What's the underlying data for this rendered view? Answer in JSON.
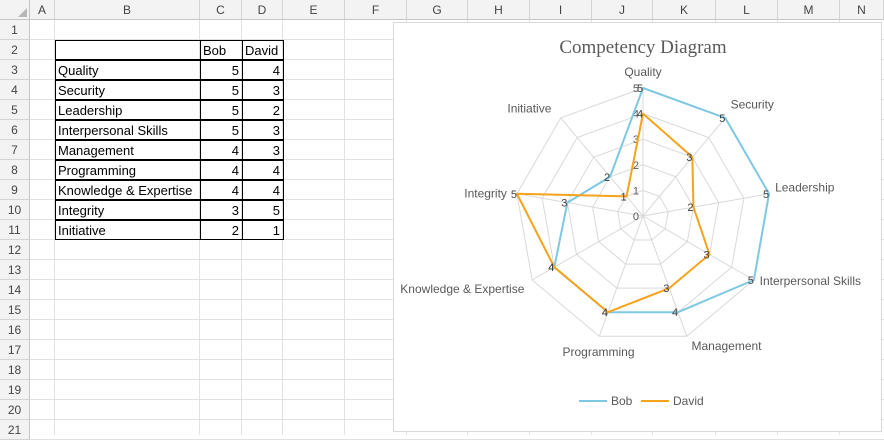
{
  "sheet": {
    "columns": [
      "A",
      "B",
      "C",
      "D",
      "E",
      "F",
      "G",
      "H",
      "I",
      "J",
      "K",
      "L",
      "M",
      "N"
    ],
    "rows": [
      "1",
      "2",
      "3",
      "4",
      "5",
      "6",
      "7",
      "8",
      "9",
      "10",
      "11",
      "12",
      "13",
      "14",
      "15",
      "16",
      "17",
      "18",
      "19",
      "20",
      "21"
    ],
    "table": {
      "headers": [
        "Bob",
        "David"
      ],
      "rows": [
        {
          "label": "Quality",
          "bob": "5",
          "david": "4"
        },
        {
          "label": "Security",
          "bob": "5",
          "david": "3"
        },
        {
          "label": "Leadership",
          "bob": "5",
          "david": "2"
        },
        {
          "label": "Interpersonal Skills",
          "bob": "5",
          "david": "3"
        },
        {
          "label": "Management",
          "bob": "4",
          "david": "3"
        },
        {
          "label": "Programming",
          "bob": "4",
          "david": "4"
        },
        {
          "label": "Knowledge & Expertise",
          "bob": "4",
          "david": "4"
        },
        {
          "label": "Integrity",
          "bob": "3",
          "david": "5"
        },
        {
          "label": "Initiative",
          "bob": "2",
          "david": "1"
        }
      ]
    }
  },
  "chart_data": {
    "type": "radar",
    "title": "Competency Diagram",
    "categories": [
      "Quality",
      "Security",
      "Leadership",
      "Interpersonal Skills",
      "Management",
      "Programming",
      "Knowledge & Expertise",
      "Integrity",
      "Initiative"
    ],
    "series": [
      {
        "name": "Bob",
        "values": [
          5,
          5,
          5,
          5,
          4,
          4,
          4,
          3,
          2
        ],
        "color": "#7ec8e3"
      },
      {
        "name": "David",
        "values": [
          4,
          3,
          2,
          3,
          3,
          4,
          4,
          5,
          1
        ],
        "color": "#f5a31a"
      }
    ],
    "rlim": [
      0,
      5
    ],
    "rticks": [
      "0",
      "1",
      "2",
      "3",
      "4",
      "5"
    ],
    "legend": "bottom",
    "gridline_color": "#d9d9d9"
  }
}
